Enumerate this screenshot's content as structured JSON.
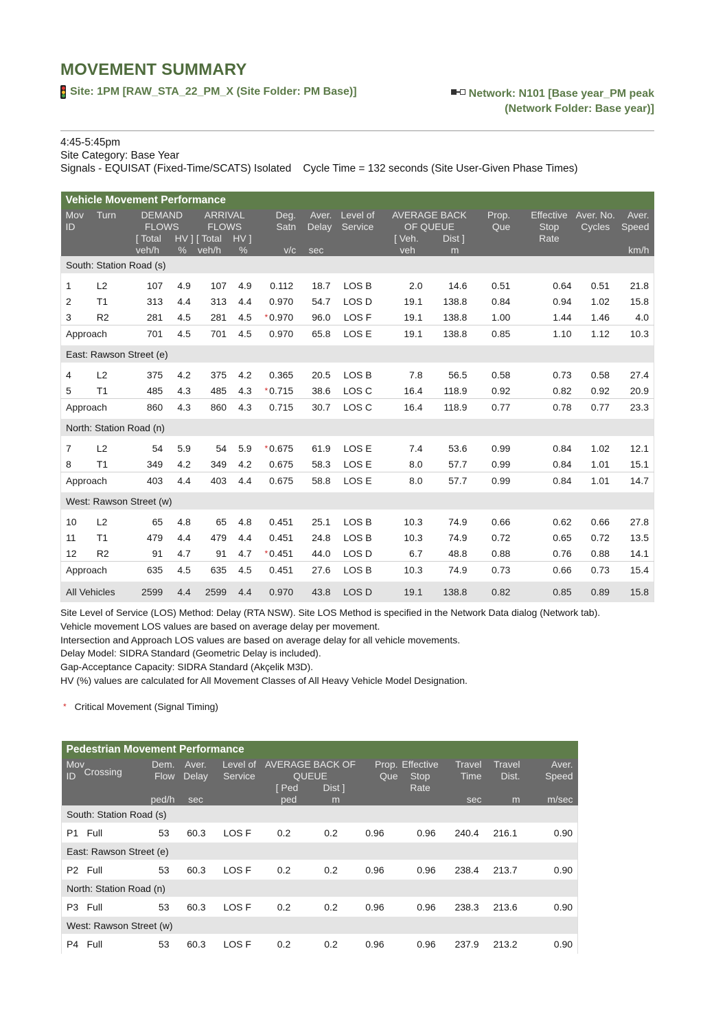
{
  "title": "MOVEMENT SUMMARY",
  "site": "Site: 1PM [RAW_STA_22_PM_X (Site Folder: PM Base)]",
  "network": "Network: N101 [Base year_PM peak (Network Folder: Base year)]",
  "info": [
    "4:45-5:45pm",
    "Site Category: Base Year",
    "Signals - EQUISAT (Fixed-Time/SCATS) Isolated    Cycle Time = 132 seconds (Site User-Given Phase Times)"
  ],
  "vehicle": {
    "caption": "Vehicle Movement Performance",
    "headers": {
      "mov": "Mov\nID",
      "turn": "Turn",
      "demand": "DEMAND\nFLOWS",
      "demand_sub1": "[ Total",
      "demand_sub2": "HV ]",
      "arrival": "ARRIVAL\nFLOWS",
      "arrival_sub1": "[ Total",
      "arrival_sub2": "HV ]",
      "deg": "Deg.\nSatn",
      "delay": "Aver.\nDelay",
      "los": "Level of\nService",
      "queue": "AVERAGE BACK\nOF QUEUE",
      "queue_sub1": "[ Veh.",
      "queue_sub2": "Dist ]",
      "prop": "Prop.\nQue",
      "eff": "Effective\nStop\nRate",
      "cycles": "Aver. No.\nCycles",
      "speed": "Aver.\nSpeed",
      "u_vehh": "veh/h",
      "u_pct": "%",
      "u_vehh2": "veh/h",
      "u_pct2": "%",
      "u_vc": "v/c",
      "u_sec": "sec",
      "u_veh": "veh",
      "u_m": "m",
      "u_kmh": "km/h"
    },
    "approaches": [
      {
        "name": "South: Station Road (s)",
        "rows": [
          [
            "1",
            "L2",
            "107",
            "4.9",
            "107",
            "4.9",
            false,
            "0.112",
            "18.7",
            "LOS B",
            "2.0",
            "14.6",
            "0.51",
            "0.64",
            "0.51",
            "21.8"
          ],
          [
            "2",
            "T1",
            "313",
            "4.4",
            "313",
            "4.4",
            false,
            "0.970",
            "54.7",
            "LOS D",
            "19.1",
            "138.8",
            "0.84",
            "0.94",
            "1.02",
            "15.8"
          ],
          [
            "3",
            "R2",
            "281",
            "4.5",
            "281",
            "4.5",
            true,
            "0.970",
            "96.0",
            "LOS F",
            "19.1",
            "138.8",
            "1.00",
            "1.44",
            "1.46",
            "4.0"
          ]
        ],
        "approach": [
          "Approach",
          "",
          "701",
          "4.5",
          "701",
          "4.5",
          false,
          "0.970",
          "65.8",
          "LOS E",
          "19.1",
          "138.8",
          "0.85",
          "1.10",
          "1.12",
          "10.3"
        ]
      },
      {
        "name": "East: Rawson Street (e)",
        "rows": [
          [
            "4",
            "L2",
            "375",
            "4.2",
            "375",
            "4.2",
            false,
            "0.365",
            "20.5",
            "LOS B",
            "7.8",
            "56.5",
            "0.58",
            "0.73",
            "0.58",
            "27.4"
          ],
          [
            "5",
            "T1",
            "485",
            "4.3",
            "485",
            "4.3",
            true,
            "0.715",
            "38.6",
            "LOS C",
            "16.4",
            "118.9",
            "0.92",
            "0.82",
            "0.92",
            "20.9"
          ]
        ],
        "approach": [
          "Approach",
          "",
          "860",
          "4.3",
          "860",
          "4.3",
          false,
          "0.715",
          "30.7",
          "LOS C",
          "16.4",
          "118.9",
          "0.77",
          "0.78",
          "0.77",
          "23.3"
        ]
      },
      {
        "name": "North: Station Road (n)",
        "rows": [
          [
            "7",
            "L2",
            "54",
            "5.9",
            "54",
            "5.9",
            true,
            "0.675",
            "61.9",
            "LOS E",
            "7.4",
            "53.6",
            "0.99",
            "0.84",
            "1.02",
            "12.1"
          ],
          [
            "8",
            "T1",
            "349",
            "4.2",
            "349",
            "4.2",
            false,
            "0.675",
            "58.3",
            "LOS E",
            "8.0",
            "57.7",
            "0.99",
            "0.84",
            "1.01",
            "15.1"
          ]
        ],
        "approach": [
          "Approach",
          "",
          "403",
          "4.4",
          "403",
          "4.4",
          false,
          "0.675",
          "58.8",
          "LOS E",
          "8.0",
          "57.7",
          "0.99",
          "0.84",
          "1.01",
          "14.7"
        ]
      },
      {
        "name": "West: Rawson Street (w)",
        "rows": [
          [
            "10",
            "L2",
            "65",
            "4.8",
            "65",
            "4.8",
            false,
            "0.451",
            "25.1",
            "LOS B",
            "10.3",
            "74.9",
            "0.66",
            "0.62",
            "0.66",
            "27.8"
          ],
          [
            "11",
            "T1",
            "479",
            "4.4",
            "479",
            "4.4",
            false,
            "0.451",
            "24.8",
            "LOS B",
            "10.3",
            "74.9",
            "0.72",
            "0.65",
            "0.72",
            "13.5"
          ],
          [
            "12",
            "R2",
            "91",
            "4.7",
            "91",
            "4.7",
            true,
            "0.451",
            "44.0",
            "LOS D",
            "6.7",
            "48.8",
            "0.88",
            "0.76",
            "0.88",
            "14.1"
          ]
        ],
        "approach": [
          "Approach",
          "",
          "635",
          "4.5",
          "635",
          "4.5",
          false,
          "0.451",
          "27.6",
          "LOS B",
          "10.3",
          "74.9",
          "0.73",
          "0.66",
          "0.73",
          "15.4"
        ]
      }
    ],
    "all": [
      "All Vehicles",
      "",
      "2599",
      "4.4",
      "2599",
      "4.4",
      false,
      "0.970",
      "43.8",
      "LOS D",
      "19.1",
      "138.8",
      "0.82",
      "0.85",
      "0.89",
      "15.8"
    ]
  },
  "notes": [
    "Site Level of Service (LOS) Method: Delay (RTA NSW). Site LOS Method is specified in the Network Data dialog (Network tab).",
    "Vehicle movement LOS values are based on average delay per movement.",
    "Intersection and Approach LOS values are based on average delay for all vehicle movements.",
    "Delay Model: SIDRA Standard (Geometric Delay is included).",
    "Gap-Acceptance Capacity: SIDRA Standard (Akçelik M3D).",
    "HV (%) values are calculated for All Movement Classes of All Heavy Vehicle Model Designation."
  ],
  "critical_mark": "*",
  "critical_label": "Critical Movement (Signal Timing)",
  "pedestrian": {
    "caption": "Pedestrian Movement Performance",
    "headers": {
      "mov": "Mov\nID",
      "crossing": "Crossing",
      "flow": "Dem.\nFlow",
      "delay": "Aver.\nDelay",
      "los": "Level of\nService",
      "queue": "AVERAGE BACK OF\nQUEUE",
      "queue_sub1": "[ Ped",
      "queue_sub2": "Dist ]",
      "prop": "Prop.\nQue",
      "eff": "Effective\nStop\nRate",
      "time": "Travel\nTime",
      "dist": "Travel\nDist.",
      "speed": "Aver.\nSpeed",
      "u_pedh": "ped/h",
      "u_sec": "sec",
      "u_ped": "ped",
      "u_m": "m",
      "u_sec2": "sec",
      "u_m2": "m",
      "u_msec": "m/sec"
    },
    "groups": [
      {
        "name": "South: Station Road (s)",
        "row": [
          "P1",
          "Full",
          "53",
          "60.3",
          "LOS F",
          "0.2",
          "0.2",
          "0.96",
          "0.96",
          "240.4",
          "216.1",
          "0.90"
        ]
      },
      {
        "name": "East: Rawson Street (e)",
        "row": [
          "P2",
          "Full",
          "53",
          "60.3",
          "LOS F",
          "0.2",
          "0.2",
          "0.96",
          "0.96",
          "238.4",
          "213.7",
          "0.90"
        ]
      },
      {
        "name": "North: Station Road (n)",
        "row": [
          "P3",
          "Full",
          "53",
          "60.3",
          "LOS F",
          "0.2",
          "0.2",
          "0.96",
          "0.96",
          "238.3",
          "213.6",
          "0.90"
        ]
      },
      {
        "name": "West: Rawson Street (w)",
        "row": [
          "P4",
          "Full",
          "53",
          "60.3",
          "LOS F",
          "0.2",
          "0.2",
          "0.96",
          "0.96",
          "237.9",
          "213.2",
          "0.90"
        ]
      }
    ]
  }
}
